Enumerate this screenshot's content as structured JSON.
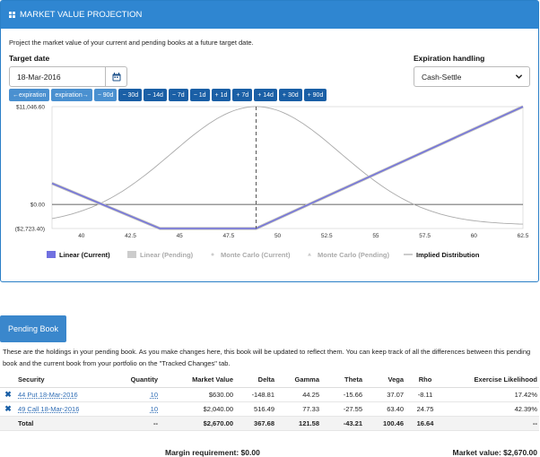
{
  "header": {
    "title": "MARKET VALUE PROJECTION",
    "icon": "grid-icon"
  },
  "description": "Project the market value of your current and pending books at a future target date.",
  "target_date": {
    "label": "Target date",
    "value": "18-Mar-2016",
    "icon": "calendar-icon"
  },
  "expiration": {
    "label": "Expiration handling",
    "value": "Cash-Settle",
    "icon": "chevron-down-icon"
  },
  "step_buttons": [
    "←expiration",
    "expiration→",
    "− 90d",
    "− 30d",
    "− 14d",
    "− 7d",
    "− 1d",
    "+ 1d",
    "+ 7d",
    "+ 14d",
    "+ 30d",
    "+ 90d"
  ],
  "chart_data": {
    "type": "line",
    "x": [
      38.5,
      40,
      42.5,
      45,
      47.5,
      48.9,
      50,
      52.5,
      55,
      57.5,
      60,
      62.5
    ],
    "xlim": [
      38.5,
      62.5
    ],
    "ylim": [
      -2723.4,
      11046.6
    ],
    "xticks": [
      "40",
      "42.5",
      "45",
      "47.5",
      "50",
      "52.5",
      "55",
      "57.5",
      "60",
      "62.5"
    ],
    "yticks": [
      "$11,046.60",
      "$0.00",
      "($2,723.40)"
    ],
    "series": [
      {
        "name": "Linear (Current)",
        "color": "#7070e0",
        "x": [
          38.5,
          44.0,
          48.9,
          62.5
        ],
        "values": [
          2376.6,
          -2723.4,
          -2723.4,
          11046.6
        ]
      },
      {
        "name": "Linear (Pending)",
        "color": "#cccccc",
        "x": [
          38.5,
          44.0,
          48.9,
          62.5
        ],
        "values": [
          2376.6,
          -2723.4,
          -2723.4,
          11046.6
        ]
      },
      {
        "name": "Monte Carlo (Current)",
        "color": "#cccccc"
      },
      {
        "name": "Monte Carlo (Pending)",
        "color": "#cccccc"
      },
      {
        "name": "Implied Distribution",
        "color": "#aaaaaa"
      }
    ],
    "target_line_x": 48.9,
    "distribution": {
      "mean": 48.9,
      "sd": 4.3
    },
    "legend_position": "bottom"
  },
  "pending_book": {
    "button": "Pending Book",
    "description": "These are the holdings in your pending book. As you make changes here, this book will be updated to reflect them. You can keep track of all the differences between this pending book and the current book from your portfolio on the \"Tracked Changes\" tab.",
    "columns": [
      "Security",
      "Quantity",
      "Market Value",
      "Delta",
      "Gamma",
      "Theta",
      "Vega",
      "Rho",
      "Exercise Likelihood"
    ],
    "rows": [
      {
        "security": "44 Put 18-Mar-2016",
        "quantity": "10",
        "market_value": "$630.00",
        "delta": "-148.81",
        "gamma": "44.25",
        "theta": "-15.66",
        "vega": "37.07",
        "rho": "-8.11",
        "exercise": "17.42%"
      },
      {
        "security": "49 Call 18-Mar-2016",
        "quantity": "10",
        "market_value": "$2,040.00",
        "delta": "516.49",
        "gamma": "77.33",
        "theta": "-27.55",
        "vega": "63.40",
        "rho": "24.75",
        "exercise": "42.39%"
      }
    ],
    "total": {
      "label": "Total",
      "quantity": "--",
      "market_value": "$2,670.00",
      "delta": "367.68",
      "gamma": "121.58",
      "theta": "-43.21",
      "vega": "100.46",
      "rho": "16.64",
      "exercise": "--"
    },
    "margin": "Margin requirement: $0.00",
    "market_value": "Market value: $2,670.00"
  }
}
